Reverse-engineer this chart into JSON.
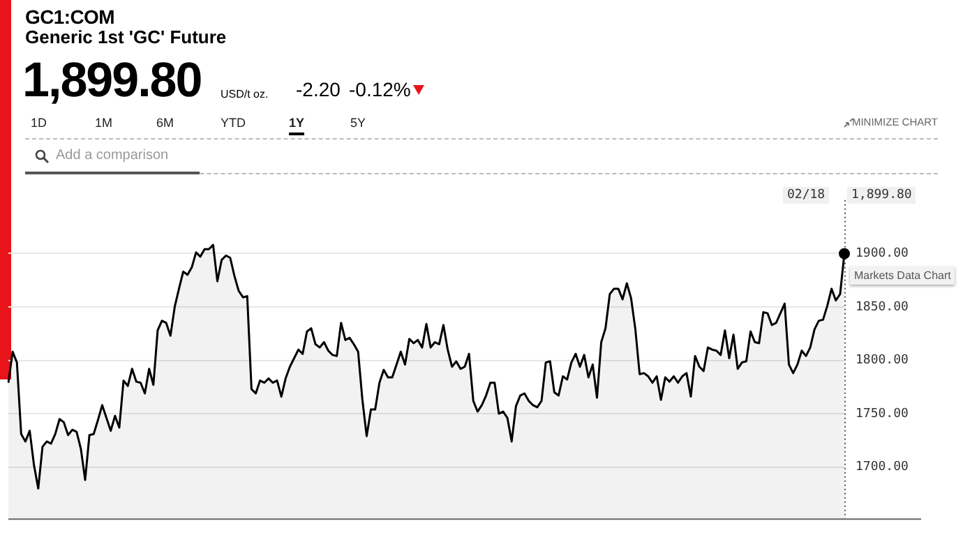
{
  "chart_data": {
    "type": "area",
    "title": "GC1:COM",
    "subtitle": "Generic 1st 'GC' Future",
    "categories": [
      null,
      null,
      null,
      null,
      null,
      null,
      null,
      null,
      null,
      null,
      null,
      null,
      null,
      null,
      null,
      null,
      null,
      null,
      null,
      null,
      null,
      null,
      null,
      null,
      null,
      null,
      null,
      null,
      null,
      null,
      null,
      null,
      null,
      null,
      null,
      null,
      null,
      null,
      null,
      null,
      null,
      null,
      null,
      null,
      null,
      null,
      null,
      null,
      null,
      null,
      null,
      null,
      null,
      null,
      null,
      null,
      null,
      null,
      null,
      null,
      null,
      null,
      null,
      null,
      null,
      null,
      null,
      null,
      null,
      null,
      null,
      null,
      null,
      null,
      null,
      null,
      null,
      null,
      null,
      null,
      null,
      null,
      null,
      null,
      null,
      null,
      null,
      null,
      null,
      null,
      null,
      null,
      null,
      null,
      null,
      null,
      null,
      null,
      null,
      null,
      null,
      null,
      null,
      null,
      null,
      null,
      null,
      null,
      null,
      null,
      null,
      null,
      null,
      null,
      null,
      null,
      null,
      null,
      null,
      null,
      null,
      null,
      null,
      null,
      null,
      null,
      null,
      null,
      null,
      null,
      null,
      null,
      null,
      null,
      null,
      null,
      null,
      null,
      null,
      null,
      null,
      null,
      null,
      null,
      null,
      null,
      null,
      null,
      null,
      null,
      null,
      null,
      null,
      null,
      null,
      null,
      null,
      null,
      null,
      null,
      null,
      null,
      null,
      null,
      null,
      null,
      null,
      null,
      null,
      null,
      null,
      null,
      null,
      null,
      null,
      null,
      null,
      null,
      null,
      null,
      null,
      null,
      null,
      null,
      null,
      null,
      null,
      null,
      null,
      null,
      null,
      null,
      null,
      null,
      null,
      null,
      null
    ],
    "series": [
      {
        "color": "#000000",
        "values": [
          1779,
          1808,
          1798,
          1731,
          1724,
          1734,
          1702,
          1680,
          1719,
          1724,
          1722,
          1731,
          1745,
          1742,
          1730,
          1735,
          1733,
          1717,
          1688,
          1730,
          1731,
          1744,
          1758,
          1746,
          1734,
          1748,
          1737,
          1781,
          1776,
          1792,
          1780,
          1779,
          1769,
          1792,
          1777,
          1828,
          1837,
          1835,
          1823,
          1850,
          1867,
          1883,
          1880,
          1887,
          1901,
          1897,
          1904,
          1904,
          1908,
          1874,
          1894,
          1898,
          1896,
          1879,
          1865,
          1859,
          1860,
          1773,
          1769,
          1781,
          1779,
          1783,
          1779,
          1781,
          1766,
          1783,
          1794,
          1802,
          1810,
          1806,
          1827,
          1830,
          1815,
          1812,
          1817,
          1809,
          1805,
          1804,
          1835,
          1819,
          1821,
          1815,
          1808,
          1763,
          1729,
          1754,
          1754,
          1779,
          1791,
          1784,
          1784,
          1796,
          1808,
          1796,
          1820,
          1816,
          1819,
          1812,
          1834,
          1812,
          1817,
          1815,
          1833,
          1810,
          1794,
          1799,
          1792,
          1794,
          1806,
          1762,
          1752,
          1758,
          1767,
          1779,
          1779,
          1750,
          1752,
          1746,
          1724,
          1757,
          1767,
          1769,
          1762,
          1758,
          1756,
          1762,
          1798,
          1799,
          1770,
          1767,
          1785,
          1782,
          1798,
          1806,
          1794,
          1805,
          1784,
          1796,
          1765,
          1817,
          1830,
          1862,
          1867,
          1867,
          1857,
          1872,
          1858,
          1829,
          1787,
          1788,
          1785,
          1779,
          1785,
          1763,
          1784,
          1780,
          1785,
          1779,
          1785,
          1788,
          1766,
          1804,
          1794,
          1790,
          1812,
          1810,
          1809,
          1805,
          1828,
          1802,
          1824,
          1792,
          1798,
          1799,
          1827,
          1817,
          1816,
          1845,
          1844,
          1833,
          1835,
          1844,
          1853,
          1796,
          1788,
          1796,
          1809,
          1804,
          1812,
          1829,
          1837,
          1838,
          1851,
          1867,
          1856,
          1862,
          1899.8
        ]
      }
    ],
    "ylim": [
      1652,
      1950
    ],
    "yticks": [
      {
        "value": 1700,
        "label": "1700.00"
      },
      {
        "value": 1750,
        "label": "1750.00"
      },
      {
        "value": 1800,
        "label": "1800.00"
      },
      {
        "value": 1850,
        "label": "1850.00"
      },
      {
        "value": 1900,
        "label": "1900.00"
      }
    ],
    "grid": "y",
    "legend": false,
    "tick_labels": "y",
    "marker": "none",
    "line_style": "solid",
    "annotations": [
      "1,899.80",
      "USD/t oz.",
      "-2.20",
      "-0.12%",
      "1D",
      "1M",
      "6M",
      "YTD",
      "1Y",
      "5Y",
      "MINIMIZE CHART",
      "Add a comparison",
      "02/18",
      "1,899.80",
      "Markets Data Chart"
    ]
  }
}
